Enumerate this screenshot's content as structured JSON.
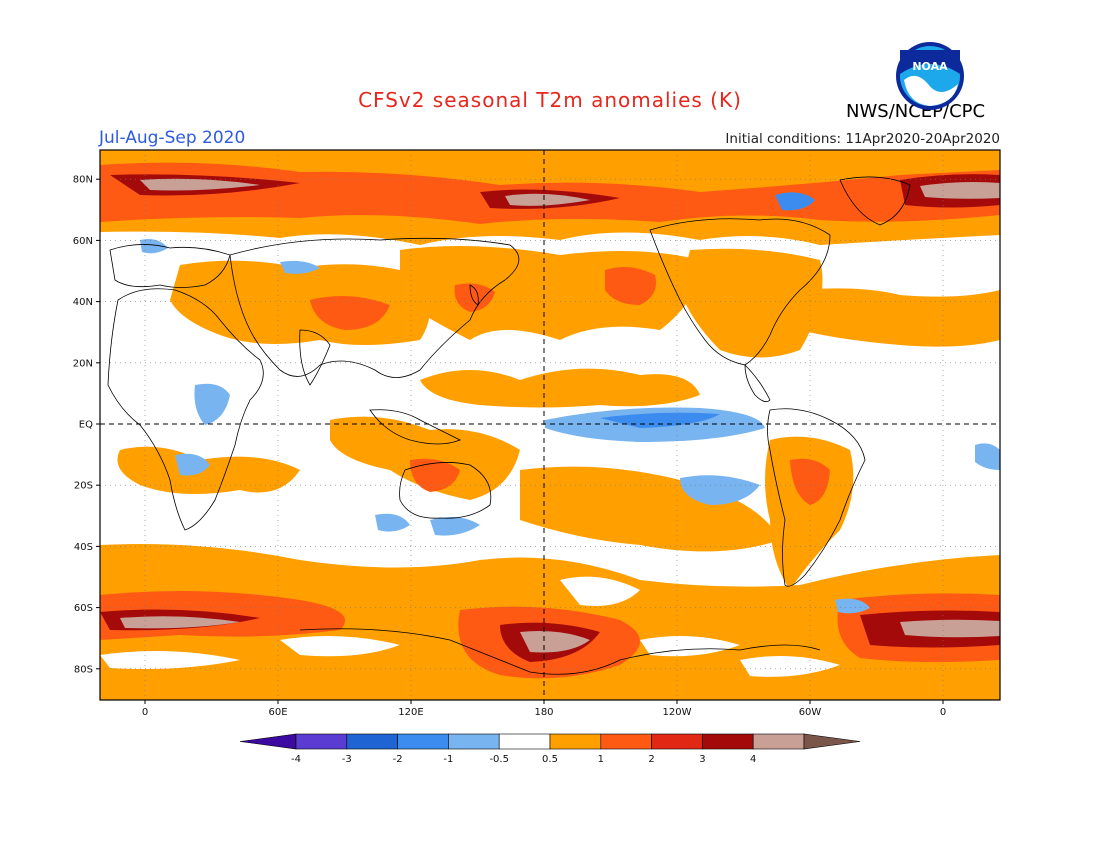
{
  "header": {
    "title": "CFSv2 seasonal T2m anomalies (K)",
    "agency": "NWS/NCEP/CPC",
    "period": "Jul-Aug-Sep 2020",
    "initial_conditions": "Initial conditions: 11Apr2020-20Apr2020",
    "logo_text": "NOAA"
  },
  "map": {
    "lat_labels": [
      "80N",
      "60N",
      "40N",
      "20N",
      "EQ",
      "20S",
      "40S",
      "60S",
      "80S"
    ],
    "lon_labels": [
      "0",
      "60E",
      "120E",
      "180",
      "120W",
      "60W",
      "0"
    ],
    "grid": "dotted",
    "reference_lines": [
      "EQ",
      "180"
    ]
  },
  "colorbar": {
    "tick_labels": [
      "-4",
      "-3",
      "-2",
      "-1",
      "-0.5",
      "0.5",
      "1",
      "2",
      "3",
      "4"
    ],
    "colors": [
      "#3c0aa0",
      "#5a3cd2",
      "#1e64d2",
      "#3c8cf0",
      "#78b4f0",
      "#ffffff",
      "#ffa000",
      "#ff5a14",
      "#e12814",
      "#a50a0a",
      "#c8a096",
      "#7a554a"
    ]
  },
  "palette": {
    "w05": "#ffa000",
    "w1": "#ff5a14",
    "w2": "#e12814",
    "w3": "#a50a0a",
    "w4": "#c8a096",
    "w5": "#7a554a",
    "c05": "#78b4f0",
    "c1": "#3c8cf0"
  }
}
